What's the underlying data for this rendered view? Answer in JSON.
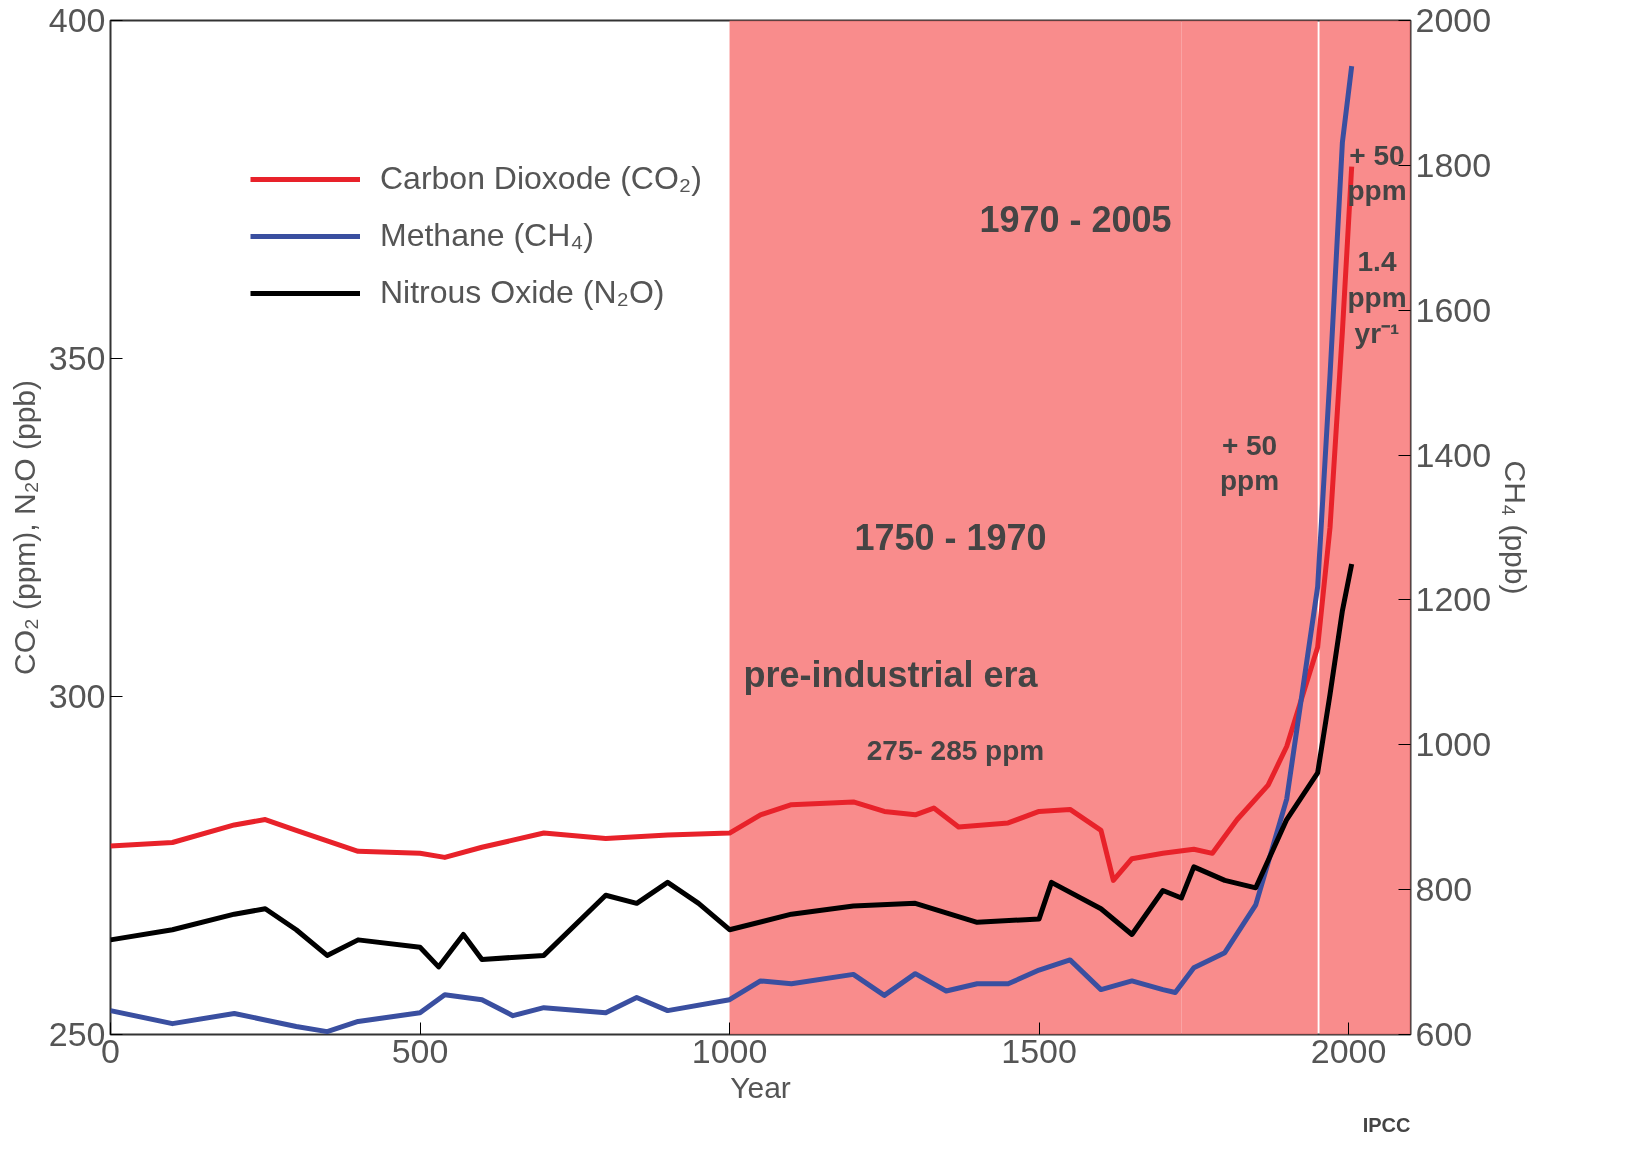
{
  "chart_data": {
    "type": "line",
    "xlabel": "Year",
    "ylabel": "CO₂ (ppm), N₂O (ppb)",
    "y2label": "CH₄ (ppb)",
    "xlim": [
      0,
      2100
    ],
    "xticks": [
      0,
      500,
      1000,
      1500,
      2000
    ],
    "ylim": [
      250,
      400
    ],
    "yticks": [
      250,
      300,
      350,
      400
    ],
    "y2lim": [
      600,
      2000
    ],
    "y2ticks": [
      600,
      800,
      1000,
      1200,
      1400,
      1600,
      1800,
      2000
    ],
    "grid": false,
    "legend": "top left",
    "series": [
      {
        "name": "Carbon Dioxode (CO₂)",
        "color": "#e8222a",
        "x": [
          0,
          100,
          200,
          250,
          300,
          400,
          500,
          540,
          600,
          700,
          800,
          900,
          1000,
          1050,
          1100,
          1200,
          1250,
          1300,
          1330,
          1370,
          1450,
          1500,
          1550,
          1600,
          1620,
          1650,
          1700,
          1750,
          1780,
          1820,
          1870,
          1900,
          1950,
          1970,
          1990,
          2005
        ],
        "values": [
          277.9,
          278.4,
          281,
          281.8,
          280.2,
          277.1,
          276.8,
          276.2,
          277.7,
          279.8,
          279,
          279.5,
          279.8,
          282.5,
          284,
          284.4,
          283,
          282.5,
          283.5,
          280.7,
          281.3,
          283,
          283.3,
          280.2,
          272.8,
          276,
          276.8,
          277.4,
          276.8,
          281.8,
          286.9,
          292.6,
          307.3,
          325,
          354,
          378.4
        ]
      },
      {
        "name": "Methane (CH₄)",
        "color": "#3a4fa0",
        "axis": "y2",
        "x": [
          0,
          100,
          200,
          300,
          350,
          400,
          500,
          540,
          600,
          650,
          700,
          800,
          850,
          900,
          1000,
          1050,
          1100,
          1200,
          1250,
          1300,
          1350,
          1400,
          1450,
          1500,
          1550,
          1600,
          1650,
          1700,
          1720,
          1750,
          1800,
          1850,
          1900,
          1950,
          1970,
          1990,
          2005
        ],
        "values": [
          633,
          615,
          629,
          611,
          604,
          618,
          630,
          655,
          648,
          626,
          637,
          630,
          651,
          633,
          648,
          674,
          670,
          683,
          654,
          684,
          660,
          670,
          670,
          689,
          703,
          662,
          674,
          662,
          658,
          692,
          713,
          779,
          925,
          1218,
          1510,
          1832,
          1937
        ]
      },
      {
        "name": "Nitrous Oxide (N₂O)",
        "color": "#000000",
        "x": [
          0,
          100,
          200,
          250,
          300,
          350,
          400,
          500,
          530,
          570,
          600,
          700,
          800,
          850,
          900,
          950,
          1000,
          1100,
          1200,
          1300,
          1400,
          1500,
          1520,
          1600,
          1650,
          1700,
          1730,
          1750,
          1800,
          1850,
          1900,
          1950,
          1970,
          1990,
          2005
        ],
        "values": [
          264,
          265.5,
          267.8,
          268.6,
          265.5,
          261.7,
          264,
          262.9,
          260,
          264.8,
          261.1,
          261.7,
          270.6,
          269.4,
          272.5,
          269.4,
          265.5,
          267.8,
          269,
          269.4,
          266.6,
          267.1,
          272.5,
          268.6,
          264.8,
          271.3,
          270.2,
          274.8,
          272.8,
          271.7,
          281.8,
          288.7,
          300.3,
          312.7,
          319.6
        ]
      }
    ],
    "bands": [
      {
        "axis": "x",
        "from": 1000,
        "to": 1730,
        "label": "275- 285 ppm",
        "color": "#f87878"
      },
      {
        "axis": "x",
        "from": 1730,
        "to": 1950,
        "label": "+ 50\nppm",
        "color": "#f87878"
      },
      {
        "axis": "x",
        "from": 1953,
        "to": 2100,
        "label": "+ 50\nppm\n\n1.4\nppm\nyr⁻¹",
        "color": "#f87878"
      }
    ],
    "annotations": [
      "1970 - 2005",
      "1750 - 1970",
      "pre-industrial era",
      "IPCC"
    ]
  }
}
